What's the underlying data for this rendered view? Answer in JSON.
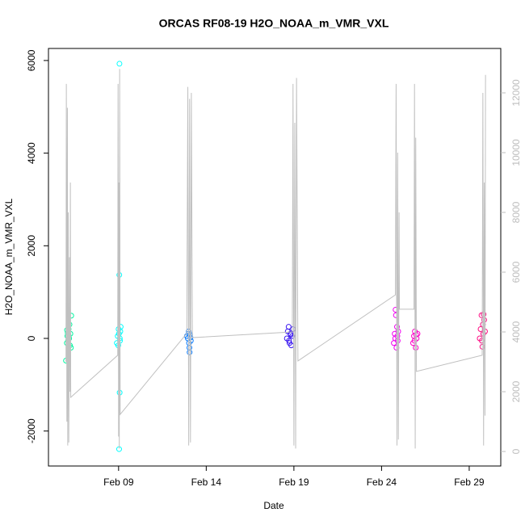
{
  "chart_data": {
    "type": "scatter",
    "title": "ORCAS RF08-19 H2O_NOAA_m_VMR_VXL",
    "x_label": "Date",
    "y_label": "H2O_NOAA_m_VMR_VXL",
    "xlim": [
      5.0,
      30.8
    ],
    "ylim": [
      -2755,
      6260
    ],
    "y2lim": [
      -486,
      13486
    ],
    "xticks": [
      {
        "value": 9,
        "label": "Feb 09"
      },
      {
        "value": 14,
        "label": "Feb 14"
      },
      {
        "value": 19,
        "label": "Feb 19"
      },
      {
        "value": 24,
        "label": "Feb 24"
      },
      {
        "value": 29,
        "label": "Feb 29"
      }
    ],
    "yticks": [
      -2000,
      0,
      2000,
      4000,
      6000
    ],
    "y2ticks": [
      0,
      2000,
      4000,
      6000,
      8000,
      10000,
      12000
    ],
    "y2_color": "#bdbdbd",
    "series": [
      {
        "color": "#00f5a0",
        "x": [
          6.0,
          6.05,
          6.08,
          6.1,
          6.12,
          6.15,
          6.18,
          6.2,
          6.22,
          6.25,
          6.28,
          6.3,
          6.14,
          6.06
        ],
        "values": [
          -480,
          -100,
          50,
          120,
          -50,
          200,
          0,
          300,
          -150,
          100,
          -200,
          490,
          80,
          180
        ]
      },
      {
        "color": "#00ffff",
        "x": [
          8.9,
          8.95,
          9.0,
          9.02,
          9.05,
          9.08,
          9.1,
          9.12,
          9.04,
          9.06,
          9.03,
          9.07,
          8.98
        ],
        "values": [
          -100,
          50,
          200,
          100,
          5930,
          -50,
          150,
          250,
          1370,
          -1170,
          -2390,
          0,
          -150
        ]
      },
      {
        "color": "#0a7cff",
        "x": [
          12.9,
          12.95,
          13.0,
          13.02,
          13.05,
          13.08,
          13.1,
          13.12,
          13.04,
          13.0
        ],
        "values": [
          50,
          0,
          100,
          -100,
          -300,
          80,
          20,
          -50,
          -200,
          150
        ]
      },
      {
        "color": "#3a18f0",
        "x": [
          18.6,
          18.65,
          18.7,
          18.75,
          18.8,
          18.85,
          18.9,
          18.95,
          18.72,
          18.82
        ],
        "values": [
          0,
          150,
          250,
          -100,
          100,
          -150,
          50,
          200,
          -50,
          80
        ]
      },
      {
        "color": "#f000f0",
        "x": [
          24.7,
          24.75,
          24.8,
          24.82,
          24.85,
          24.9,
          24.95,
          24.78,
          24.88,
          24.92
        ],
        "values": [
          -100,
          100,
          620,
          500,
          -200,
          50,
          150,
          0,
          250,
          -50
        ]
      },
      {
        "color": "#ff00c8",
        "x": [
          25.8,
          25.85,
          25.9,
          25.95,
          26.0,
          26.05,
          25.88,
          25.97
        ],
        "values": [
          -100,
          50,
          150,
          -200,
          0,
          100,
          -50,
          80
        ]
      },
      {
        "color": "#ff0a82",
        "x": [
          29.6,
          29.65,
          29.7,
          29.75,
          29.8,
          29.85,
          29.9,
          29.72,
          29.78,
          29.82
        ],
        "values": [
          0,
          200,
          500,
          -180,
          100,
          400,
          150,
          -50,
          300,
          520
        ]
      },
      {
        "type": "line",
        "axis": "y2",
        "color": "#c0c0c0",
        "x": [
          6.0,
          6.02,
          6.05,
          6.08,
          6.1,
          6.13,
          6.16,
          6.2,
          6.23,
          6.25,
          6.27,
          8.95,
          8.97,
          9.0,
          9.02,
          9.04,
          9.06,
          9.09,
          12.89,
          12.95,
          13.0,
          13.05,
          13.1,
          13.15,
          13.21,
          18.91,
          18.95,
          19.0,
          19.05,
          19.1,
          19.15,
          19.23,
          24.79,
          24.83,
          24.88,
          24.92,
          24.96,
          25.0,
          25.02,
          25.85,
          25.88,
          25.92,
          25.95,
          25.99,
          29.74,
          29.78,
          29.82,
          29.86,
          29.9,
          29.93
        ],
        "values": [
          3000,
          12300,
          1000,
          11500,
          200,
          8000,
          300,
          6500,
          2000,
          9000,
          1810,
          3220,
          12300,
          500,
          9000,
          100,
          12800,
          1240,
          3950,
          12200,
          200,
          11800,
          300,
          12000,
          3810,
          4000,
          12300,
          200,
          11000,
          100,
          12500,
          3030,
          5240,
          12300,
          200,
          10000,
          400,
          8000,
          4760,
          4760,
          12300,
          100,
          10500,
          2680,
          3220,
          12000,
          200,
          9000,
          1200,
          12600
        ]
      }
    ]
  }
}
